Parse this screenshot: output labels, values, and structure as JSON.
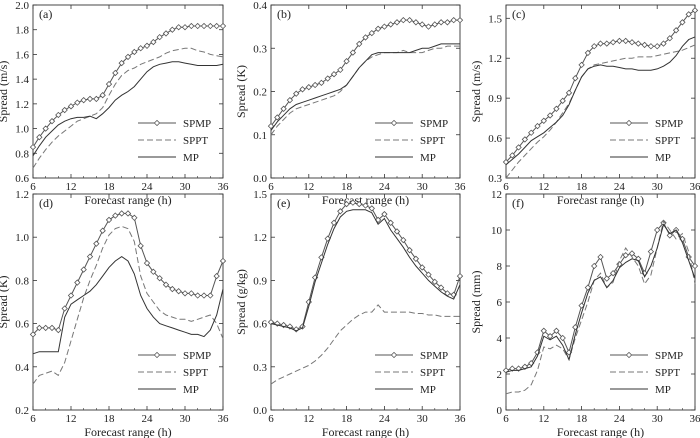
{
  "chart_data": [
    {
      "type": "line",
      "panel_label": "(a)",
      "xlabel": "Forecast range (h)",
      "ylabel": "Spread (m/s)",
      "xlim": [
        6,
        36
      ],
      "ylim": [
        0.6,
        2.0
      ],
      "xticks": [
        6,
        12,
        18,
        24,
        30,
        36
      ],
      "yticks": [
        "0.6",
        "0.8",
        "1.0",
        "1.2",
        "1.4",
        "1.6",
        "1.8",
        "2.0"
      ],
      "x": [
        6,
        7,
        8,
        9,
        10,
        11,
        12,
        13,
        14,
        15,
        16,
        17,
        18,
        19,
        20,
        21,
        22,
        23,
        24,
        25,
        26,
        27,
        28,
        29,
        30,
        31,
        32,
        33,
        34,
        35,
        36
      ],
      "series": [
        {
          "name": "SPMP",
          "style": "diamond",
          "values": [
            0.85,
            0.93,
            1.0,
            1.06,
            1.11,
            1.15,
            1.18,
            1.21,
            1.23,
            1.24,
            1.24,
            1.27,
            1.36,
            1.45,
            1.53,
            1.58,
            1.62,
            1.65,
            1.67,
            1.7,
            1.74,
            1.77,
            1.8,
            1.82,
            1.82,
            1.83,
            1.83,
            1.83,
            1.83,
            1.83,
            1.83
          ]
        },
        {
          "name": "SPPT",
          "style": "dashed",
          "values": [
            0.68,
            0.76,
            0.83,
            0.89,
            0.94,
            0.98,
            1.02,
            1.06,
            1.08,
            1.1,
            1.12,
            1.17,
            1.27,
            1.36,
            1.43,
            1.47,
            1.49,
            1.52,
            1.54,
            1.56,
            1.58,
            1.61,
            1.63,
            1.64,
            1.65,
            1.65,
            1.63,
            1.62,
            1.6,
            1.59,
            1.58
          ]
        },
        {
          "name": "MP",
          "style": "solid",
          "values": [
            0.78,
            0.86,
            0.93,
            0.98,
            1.03,
            1.06,
            1.08,
            1.09,
            1.09,
            1.1,
            1.08,
            1.12,
            1.17,
            1.23,
            1.27,
            1.3,
            1.34,
            1.4,
            1.46,
            1.5,
            1.52,
            1.53,
            1.54,
            1.54,
            1.53,
            1.52,
            1.51,
            1.51,
            1.51,
            1.51,
            1.52
          ]
        }
      ]
    },
    {
      "type": "line",
      "panel_label": "(b)",
      "xlabel": "Forecast range (h)",
      "ylabel": "Spread (K)",
      "xlim": [
        6,
        36
      ],
      "ylim": [
        0.0,
        0.4
      ],
      "xticks": [
        6,
        12,
        18,
        24,
        30,
        36
      ],
      "yticks": [
        "0.0",
        "0.1",
        "0.2",
        "0.3",
        "0.4"
      ],
      "x": [
        6,
        7,
        8,
        9,
        10,
        11,
        12,
        13,
        14,
        15,
        16,
        17,
        18,
        19,
        20,
        21,
        22,
        23,
        24,
        25,
        26,
        27,
        28,
        29,
        30,
        31,
        32,
        33,
        34,
        35,
        36
      ],
      "series": [
        {
          "name": "SPMP",
          "style": "diamond",
          "values": [
            0.12,
            0.14,
            0.16,
            0.18,
            0.195,
            0.205,
            0.21,
            0.215,
            0.22,
            0.23,
            0.24,
            0.25,
            0.27,
            0.29,
            0.31,
            0.325,
            0.335,
            0.345,
            0.35,
            0.355,
            0.36,
            0.365,
            0.365,
            0.36,
            0.355,
            0.35,
            0.355,
            0.36,
            0.36,
            0.365,
            0.365
          ]
        },
        {
          "name": "SPPT",
          "style": "dashed",
          "values": [
            0.1,
            0.12,
            0.135,
            0.15,
            0.16,
            0.165,
            0.17,
            0.175,
            0.18,
            0.185,
            0.19,
            0.2,
            0.215,
            0.235,
            0.255,
            0.27,
            0.28,
            0.285,
            0.29,
            0.29,
            0.29,
            0.295,
            0.29,
            0.29,
            0.29,
            0.295,
            0.3,
            0.3,
            0.305,
            0.305,
            0.305
          ]
        },
        {
          "name": "MP",
          "style": "solid",
          "values": [
            0.11,
            0.13,
            0.145,
            0.16,
            0.17,
            0.175,
            0.18,
            0.185,
            0.19,
            0.195,
            0.2,
            0.205,
            0.215,
            0.235,
            0.255,
            0.27,
            0.285,
            0.29,
            0.29,
            0.29,
            0.29,
            0.29,
            0.29,
            0.295,
            0.3,
            0.3,
            0.305,
            0.31,
            0.31,
            0.31,
            0.31
          ]
        }
      ]
    },
    {
      "type": "line",
      "panel_label": "(c)",
      "xlabel": "Forecast range (h)",
      "ylabel": "Spread (m/s)",
      "xlim": [
        6,
        36
      ],
      "ylim": [
        0.3,
        1.6
      ],
      "xticks": [
        6,
        12,
        18,
        24,
        30,
        36
      ],
      "yticks": [
        "0.3",
        "0.6",
        "0.9",
        "1.2",
        "1.5"
      ],
      "x": [
        6,
        7,
        8,
        9,
        10,
        11,
        12,
        13,
        14,
        15,
        16,
        17,
        18,
        19,
        20,
        21,
        22,
        23,
        24,
        25,
        26,
        27,
        28,
        29,
        30,
        31,
        32,
        33,
        34,
        35,
        36
      ],
      "series": [
        {
          "name": "SPMP",
          "style": "diamond",
          "values": [
            0.42,
            0.47,
            0.53,
            0.59,
            0.64,
            0.69,
            0.73,
            0.77,
            0.82,
            0.88,
            0.94,
            1.05,
            1.15,
            1.24,
            1.29,
            1.31,
            1.31,
            1.32,
            1.33,
            1.33,
            1.32,
            1.31,
            1.3,
            1.29,
            1.29,
            1.31,
            1.35,
            1.41,
            1.47,
            1.53,
            1.56
          ]
        },
        {
          "name": "SPPT",
          "style": "dashed",
          "values": [
            0.3,
            0.36,
            0.42,
            0.47,
            0.52,
            0.57,
            0.61,
            0.66,
            0.72,
            0.79,
            0.86,
            0.96,
            1.06,
            1.12,
            1.15,
            1.16,
            1.17,
            1.18,
            1.19,
            1.2,
            1.2,
            1.21,
            1.21,
            1.21,
            1.22,
            1.23,
            1.24,
            1.25,
            1.26,
            1.28,
            1.3
          ]
        },
        {
          "name": "MP",
          "style": "solid",
          "values": [
            0.4,
            0.44,
            0.48,
            0.53,
            0.58,
            0.61,
            0.64,
            0.68,
            0.72,
            0.77,
            0.85,
            0.96,
            1.06,
            1.12,
            1.14,
            1.15,
            1.14,
            1.14,
            1.13,
            1.12,
            1.12,
            1.11,
            1.11,
            1.11,
            1.12,
            1.14,
            1.17,
            1.22,
            1.29,
            1.34,
            1.36
          ]
        }
      ]
    },
    {
      "type": "line",
      "panel_label": "(d)",
      "xlabel": "Forecast range (h)",
      "ylabel": "Spread (K)",
      "xlim": [
        6,
        36
      ],
      "ylim": [
        0.2,
        1.2
      ],
      "xticks": [
        6,
        12,
        18,
        24,
        30,
        36
      ],
      "yticks": [
        "0.2",
        "0.4",
        "0.6",
        "0.8",
        "1.0",
        "1.2"
      ],
      "x": [
        6,
        7,
        8,
        9,
        10,
        11,
        12,
        13,
        14,
        15,
        16,
        17,
        18,
        19,
        20,
        21,
        22,
        23,
        24,
        25,
        26,
        27,
        28,
        29,
        30,
        31,
        32,
        33,
        34,
        35,
        36
      ],
      "series": [
        {
          "name": "SPMP",
          "style": "diamond",
          "values": [
            0.55,
            0.58,
            0.58,
            0.58,
            0.57,
            0.67,
            0.73,
            0.79,
            0.85,
            0.91,
            0.97,
            1.03,
            1.08,
            1.1,
            1.11,
            1.11,
            1.09,
            0.96,
            0.88,
            0.84,
            0.81,
            0.78,
            0.76,
            0.75,
            0.74,
            0.74,
            0.73,
            0.73,
            0.73,
            0.82,
            0.89
          ]
        },
        {
          "name": "SPPT",
          "style": "dashed",
          "values": [
            0.32,
            0.36,
            0.37,
            0.38,
            0.36,
            0.42,
            0.52,
            0.62,
            0.72,
            0.8,
            0.87,
            0.95,
            1.01,
            1.04,
            1.05,
            1.04,
            0.98,
            0.82,
            0.74,
            0.7,
            0.66,
            0.64,
            0.63,
            0.62,
            0.62,
            0.61,
            0.62,
            0.63,
            0.64,
            0.6,
            0.53
          ]
        },
        {
          "name": "MP",
          "style": "solid",
          "values": [
            0.46,
            0.47,
            0.47,
            0.47,
            0.47,
            0.63,
            0.69,
            0.71,
            0.73,
            0.75,
            0.78,
            0.82,
            0.86,
            0.89,
            0.91,
            0.89,
            0.83,
            0.73,
            0.67,
            0.63,
            0.6,
            0.59,
            0.58,
            0.57,
            0.56,
            0.55,
            0.55,
            0.54,
            0.57,
            0.64,
            0.76
          ]
        }
      ]
    },
    {
      "type": "line",
      "panel_label": "(e)",
      "xlabel": "Forecast range (h)",
      "ylabel": "Spread (g/kg)",
      "xlim": [
        6,
        36
      ],
      "ylim": [
        0.0,
        1.5
      ],
      "xticks": [
        6,
        12,
        18,
        24,
        30,
        36
      ],
      "yticks": [
        "0.0",
        "0.3",
        "0.6",
        "0.9",
        "1.2",
        "1.5"
      ],
      "x": [
        6,
        7,
        8,
        9,
        10,
        11,
        12,
        13,
        14,
        15,
        16,
        17,
        18,
        19,
        20,
        21,
        22,
        23,
        24,
        25,
        26,
        27,
        28,
        29,
        30,
        31,
        32,
        33,
        34,
        35,
        36
      ],
      "series": [
        {
          "name": "SPMP",
          "style": "diamond",
          "values": [
            0.61,
            0.6,
            0.59,
            0.58,
            0.56,
            0.58,
            0.75,
            0.92,
            1.06,
            1.19,
            1.3,
            1.38,
            1.43,
            1.44,
            1.43,
            1.42,
            1.4,
            1.32,
            1.36,
            1.3,
            1.24,
            1.18,
            1.11,
            1.05,
            0.99,
            0.94,
            0.89,
            0.85,
            0.81,
            0.8,
            0.93
          ]
        },
        {
          "name": "SPPT",
          "style": "dashed",
          "values": [
            0.18,
            0.21,
            0.23,
            0.25,
            0.27,
            0.29,
            0.31,
            0.34,
            0.38,
            0.43,
            0.49,
            0.55,
            0.59,
            0.63,
            0.66,
            0.68,
            0.68,
            0.73,
            0.68,
            0.68,
            0.68,
            0.68,
            0.68,
            0.67,
            0.67,
            0.66,
            0.66,
            0.65,
            0.65,
            0.65,
            0.65
          ]
        },
        {
          "name": "MP",
          "style": "solid",
          "values": [
            0.6,
            0.59,
            0.58,
            0.57,
            0.55,
            0.57,
            0.72,
            0.89,
            1.02,
            1.15,
            1.26,
            1.34,
            1.38,
            1.39,
            1.39,
            1.39,
            1.37,
            1.29,
            1.33,
            1.25,
            1.19,
            1.13,
            1.06,
            1.0,
            0.95,
            0.9,
            0.86,
            0.82,
            0.79,
            0.77,
            0.87
          ]
        }
      ]
    },
    {
      "type": "line",
      "panel_label": "(f)",
      "xlabel": "Forecast range (h)",
      "ylabel": "Spread (mm)",
      "xlim": [
        6,
        36
      ],
      "ylim": [
        0,
        12
      ],
      "xticks": [
        6,
        12,
        18,
        24,
        30,
        36
      ],
      "yticks": [
        "0",
        "2",
        "4",
        "6",
        "8",
        "10",
        "12"
      ],
      "x": [
        6,
        7,
        8,
        9,
        10,
        11,
        12,
        13,
        14,
        15,
        16,
        17,
        18,
        19,
        20,
        21,
        22,
        23,
        24,
        25,
        26,
        27,
        28,
        29,
        30,
        31,
        32,
        33,
        34,
        35,
        36
      ],
      "series": [
        {
          "name": "SPMP",
          "style": "diamond",
          "values": [
            2.2,
            2.3,
            2.3,
            2.4,
            2.6,
            3.2,
            4.4,
            4.1,
            4.4,
            4.0,
            3.2,
            4.6,
            5.8,
            6.8,
            8.0,
            8.5,
            7.3,
            7.6,
            8.1,
            8.6,
            8.7,
            8.4,
            7.6,
            8.8,
            10.0,
            10.4,
            9.7,
            10.0,
            9.5,
            8.5,
            8.0
          ]
        },
        {
          "name": "SPPT",
          "style": "dashed",
          "values": [
            0.9,
            1.0,
            1.0,
            1.1,
            1.4,
            2.2,
            3.5,
            3.4,
            3.6,
            3.4,
            2.8,
            4.0,
            5.0,
            6.0,
            7.2,
            7.6,
            6.8,
            7.1,
            8.3,
            9.0,
            8.5,
            8.0,
            7.0,
            7.5,
            9.0,
            10.5,
            10.0,
            9.5,
            9.8,
            8.8,
            7.0
          ]
        },
        {
          "name": "MP",
          "style": "solid",
          "values": [
            2.1,
            2.2,
            2.2,
            2.3,
            2.4,
            3.0,
            4.1,
            3.9,
            4.1,
            3.6,
            2.8,
            4.2,
            5.4,
            6.5,
            7.2,
            7.4,
            6.8,
            7.2,
            7.9,
            8.2,
            8.4,
            8.3,
            7.4,
            8.0,
            9.0,
            10.3,
            9.8,
            10.0,
            9.3,
            8.3,
            7.3
          ]
        }
      ]
    }
  ]
}
